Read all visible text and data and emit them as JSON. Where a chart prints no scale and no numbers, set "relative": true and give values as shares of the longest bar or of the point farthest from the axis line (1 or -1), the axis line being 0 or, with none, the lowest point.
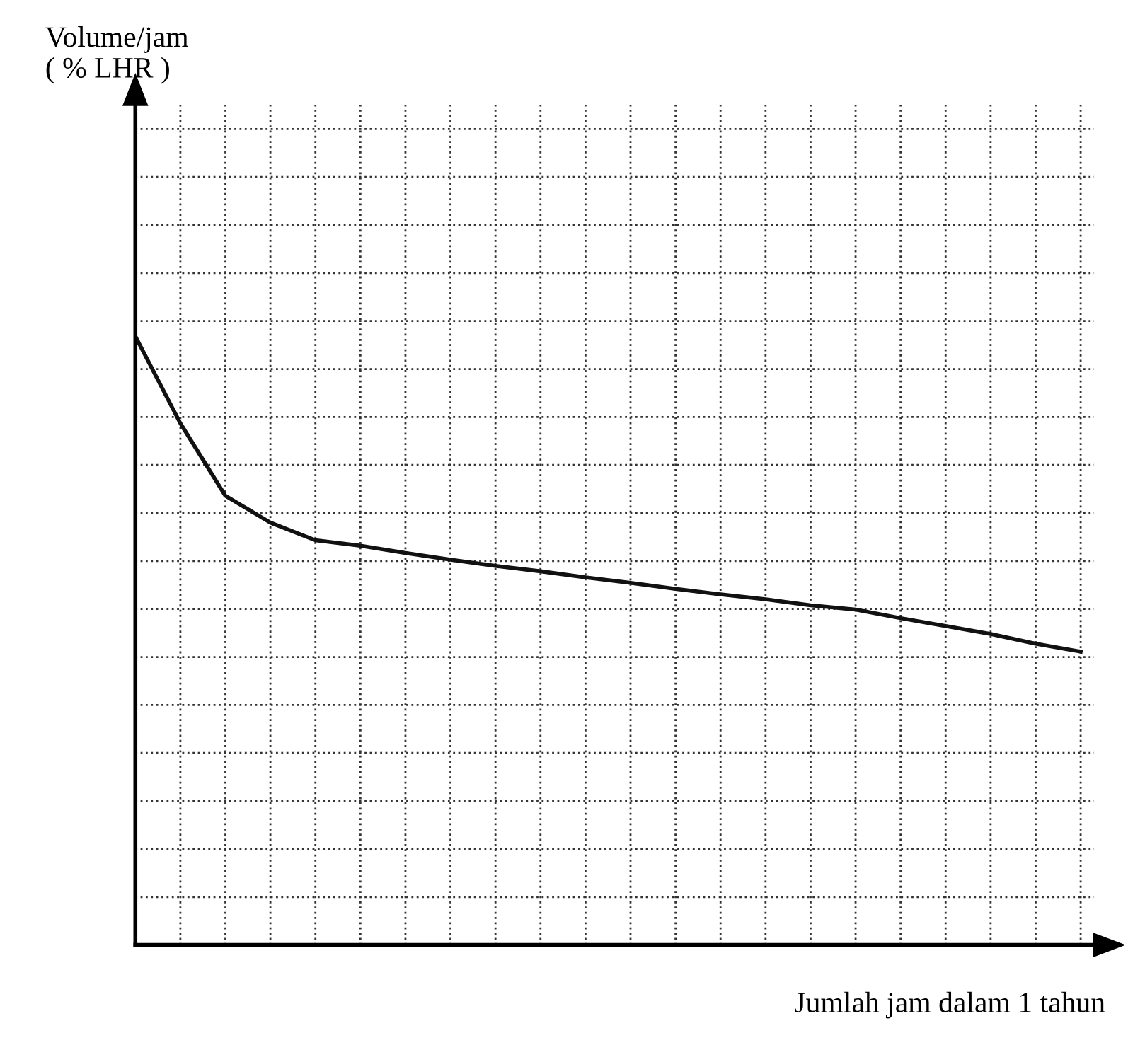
{
  "chart_data": {
    "type": "line",
    "relative": true,
    "xlabel": "Jumlah jam dalam 1 tahun",
    "annotations": [
      "Volume/jam\n( % LHR )"
    ],
    "categories": [
      null,
      null,
      null,
      null,
      null,
      null,
      null,
      null,
      null,
      null,
      null,
      null,
      null,
      null,
      null,
      null,
      null,
      null,
      null,
      null,
      null,
      null
    ],
    "series": [
      {
        "color": "#111111",
        "values": [
          1.0,
          0.857,
          0.738,
          0.694,
          0.665,
          0.656,
          0.644,
          0.633,
          0.623,
          0.614,
          0.604,
          0.595,
          0.585,
          0.576,
          0.568,
          0.558,
          0.551,
          0.537,
          0.524,
          0.511,
          0.495,
          0.482
        ]
      }
    ],
    "grid": true,
    "line_style": "solid",
    "marker": "none"
  }
}
